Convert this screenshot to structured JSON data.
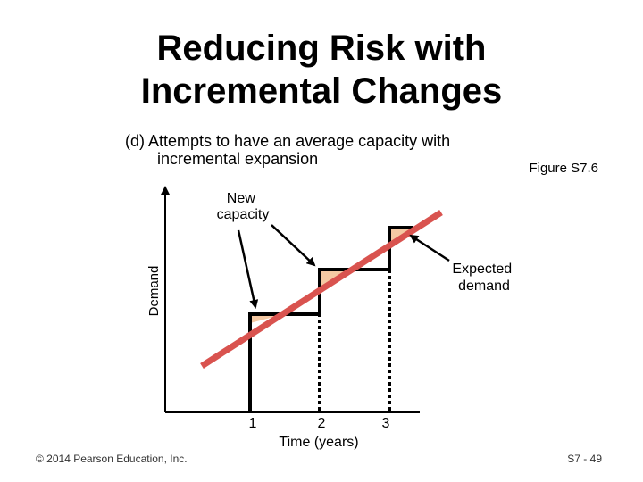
{
  "slide": {
    "title_lines": [
      "Reducing Risk with",
      "Incremental Changes"
    ],
    "subtitle_lines": [
      "(d)  Attempts to have an average capacity with",
      "incremental expansion"
    ],
    "figure_ref": "Figure S7.6",
    "footer_left": "© 2014 Pearson Education, Inc.",
    "footer_right": "S7 - 49"
  },
  "diagram": {
    "y_axis_label": "Demand",
    "x_axis_label": "Time (years)",
    "x_ticks": [
      "1",
      "2",
      "3"
    ],
    "callouts": {
      "new_capacity": [
        "New",
        "capacity"
      ],
      "expected_demand": [
        "Expected",
        "demand"
      ]
    },
    "colors": {
      "demand_line": "#d9534f",
      "capacity_fill": "#f5c9a3",
      "axis": "#000000"
    }
  }
}
